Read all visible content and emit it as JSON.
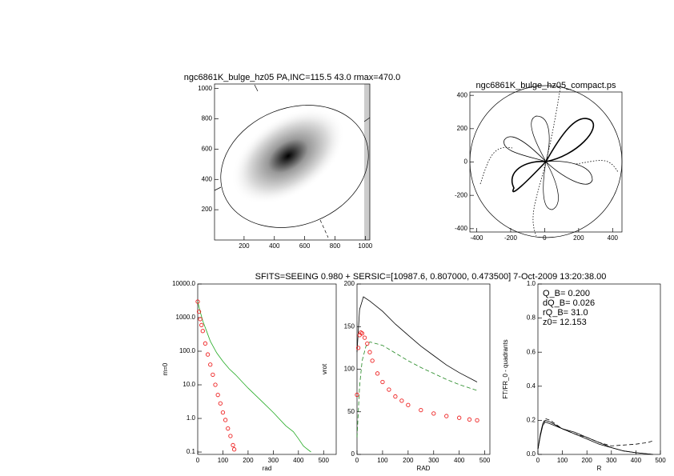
{
  "suptitle": "SFITS=SEEING 0.980 + SERSIC=[10987.6, 0.807000, 0.473500]   7-Oct-2009 13:20:38.00",
  "chart_data": [
    {
      "type": "image",
      "title": "ngc6861K_bulge_hz05 PA,INC=115.5 43.0 rmax=470.0",
      "xlim": [
        5,
        1030
      ],
      "ylim": [
        0,
        1030
      ],
      "xticks": [
        200,
        400,
        600,
        800,
        1000
      ],
      "yticks": [
        200,
        400,
        600,
        800,
        1000
      ]
    },
    {
      "type": "polar",
      "title": "ngc6861K_bulge_hz05_compact.ps",
      "xlim": [
        -440,
        455
      ],
      "ylim": [
        -420,
        420
      ],
      "xticks": [
        -400,
        -200,
        0,
        200,
        400
      ],
      "yticks": [
        -400,
        -200,
        0,
        200,
        400
      ]
    },
    {
      "type": "line",
      "xlabel": "rad",
      "ylabel": "m=0",
      "log_y": true,
      "xlim": [
        0,
        550
      ],
      "ylim": [
        0.085,
        10000
      ],
      "xticks": [
        0,
        100,
        200,
        300,
        400,
        500
      ],
      "yticks": [
        {
          "value": 0.1,
          "label": "0.1"
        },
        {
          "value": 1,
          "label": "1.0"
        },
        {
          "value": 10,
          "label": "10.0"
        },
        {
          "value": 100,
          "label": "100.0"
        },
        {
          "value": 1000,
          "label": "1000.0"
        },
        {
          "value": 10000,
          "label": "10000.0"
        }
      ],
      "series": [
        {
          "color": "#22aa22",
          "x": [
            0,
            10,
            20,
            35,
            50,
            75,
            100,
            125,
            150,
            200,
            250,
            300,
            350,
            380,
            400,
            420,
            450
          ],
          "values": [
            3000,
            1500,
            800,
            400,
            200,
            90,
            50,
            30,
            20,
            8,
            3.5,
            1.5,
            0.6,
            0.4,
            0.25,
            0.15,
            0.1
          ]
        },
        {
          "color": "#ee2222",
          "marker": true,
          "x": [
            0,
            5,
            10,
            15,
            20,
            30,
            40,
            50,
            60,
            70,
            80,
            90,
            100,
            110,
            120,
            130,
            140,
            145
          ],
          "values": [
            3000,
            1500,
            900,
            600,
            400,
            170,
            80,
            40,
            20,
            10,
            5,
            2.8,
            1.5,
            0.9,
            0.5,
            0.3,
            0.16,
            0.12
          ]
        }
      ]
    },
    {
      "type": "line",
      "xlabel": "RAD",
      "ylabel": "vrot",
      "xlim": [
        0,
        520
      ],
      "ylim": [
        0,
        200
      ],
      "xticks": [
        0,
        100,
        200,
        300,
        400,
        500
      ],
      "yticks": [
        0,
        50,
        100,
        150,
        200
      ],
      "series": [
        {
          "color": "#000000",
          "x": [
            0,
            10,
            25,
            50,
            100,
            150,
            200,
            250,
            300,
            350,
            400,
            470
          ],
          "values": [
            120,
            170,
            185,
            180,
            168,
            153,
            140,
            127,
            116,
            105,
            96,
            85
          ]
        },
        {
          "color": "#228822",
          "dash": true,
          "x": [
            0,
            10,
            20,
            35,
            50,
            100,
            150,
            200,
            250,
            300,
            350,
            400,
            470
          ],
          "values": [
            20,
            80,
            110,
            127,
            132,
            128,
            119,
            110,
            102,
            95,
            88,
            82,
            75
          ]
        },
        {
          "color": "#ee2222",
          "marker": true,
          "x": [
            0,
            5,
            10,
            15,
            20,
            30,
            40,
            50,
            60,
            80,
            100,
            125,
            150,
            175,
            200,
            250,
            300,
            350,
            400,
            440,
            470
          ],
          "values": [
            70,
            125,
            140,
            143,
            142,
            137,
            130,
            120,
            110,
            95,
            85,
            76,
            68,
            63,
            58,
            52,
            48,
            45,
            43,
            41,
            40
          ]
        }
      ]
    },
    {
      "type": "line",
      "xlabel": "R",
      "ylabel": "FT/FR_0 - quadrants",
      "annotations": [
        "Q_B=  0.200",
        "dQ_B=  0.026",
        "rQ_B=  31.0",
        "z0= 12.153"
      ],
      "xlim": [
        0,
        500
      ],
      "ylim": [
        0,
        1.0
      ],
      "xticks": [
        0,
        100,
        200,
        300,
        400,
        500
      ],
      "yticks": [
        {
          "value": 0,
          "label": "0.0"
        },
        {
          "value": 0.2,
          "label": "0.2"
        },
        {
          "value": 0.4,
          "label": "0.4"
        },
        {
          "value": 0.6,
          "label": "0.6"
        },
        {
          "value": 0.8,
          "label": "0.8"
        },
        {
          "value": 1.0,
          "label": "1.0"
        }
      ],
      "series": [
        {
          "color": "#000000",
          "x": [
            0,
            10,
            20,
            30,
            50,
            100,
            150,
            200,
            250,
            300,
            350,
            400,
            470
          ],
          "values": [
            0.03,
            0.12,
            0.18,
            0.2,
            0.19,
            0.15,
            0.12,
            0.09,
            0.06,
            0.04,
            0.02,
            0.01,
            0.0
          ]
        },
        {
          "color": "#000000",
          "x": [
            0,
            10,
            20,
            30,
            50,
            100,
            150,
            200,
            250,
            300,
            350,
            400,
            470
          ],
          "values": [
            0.03,
            0.11,
            0.17,
            0.19,
            0.18,
            0.15,
            0.13,
            0.1,
            0.07,
            0.04,
            0.02,
            0.01,
            0.0
          ]
        },
        {
          "color": "#000000",
          "dash": true,
          "x": [
            0,
            10,
            20,
            30,
            50,
            100,
            150,
            200,
            250,
            300,
            350,
            400,
            450,
            470
          ],
          "values": [
            0.03,
            0.12,
            0.18,
            0.21,
            0.2,
            0.15,
            0.12,
            0.1,
            0.07,
            0.05,
            0.055,
            0.06,
            0.07,
            0.08
          ]
        }
      ]
    }
  ]
}
